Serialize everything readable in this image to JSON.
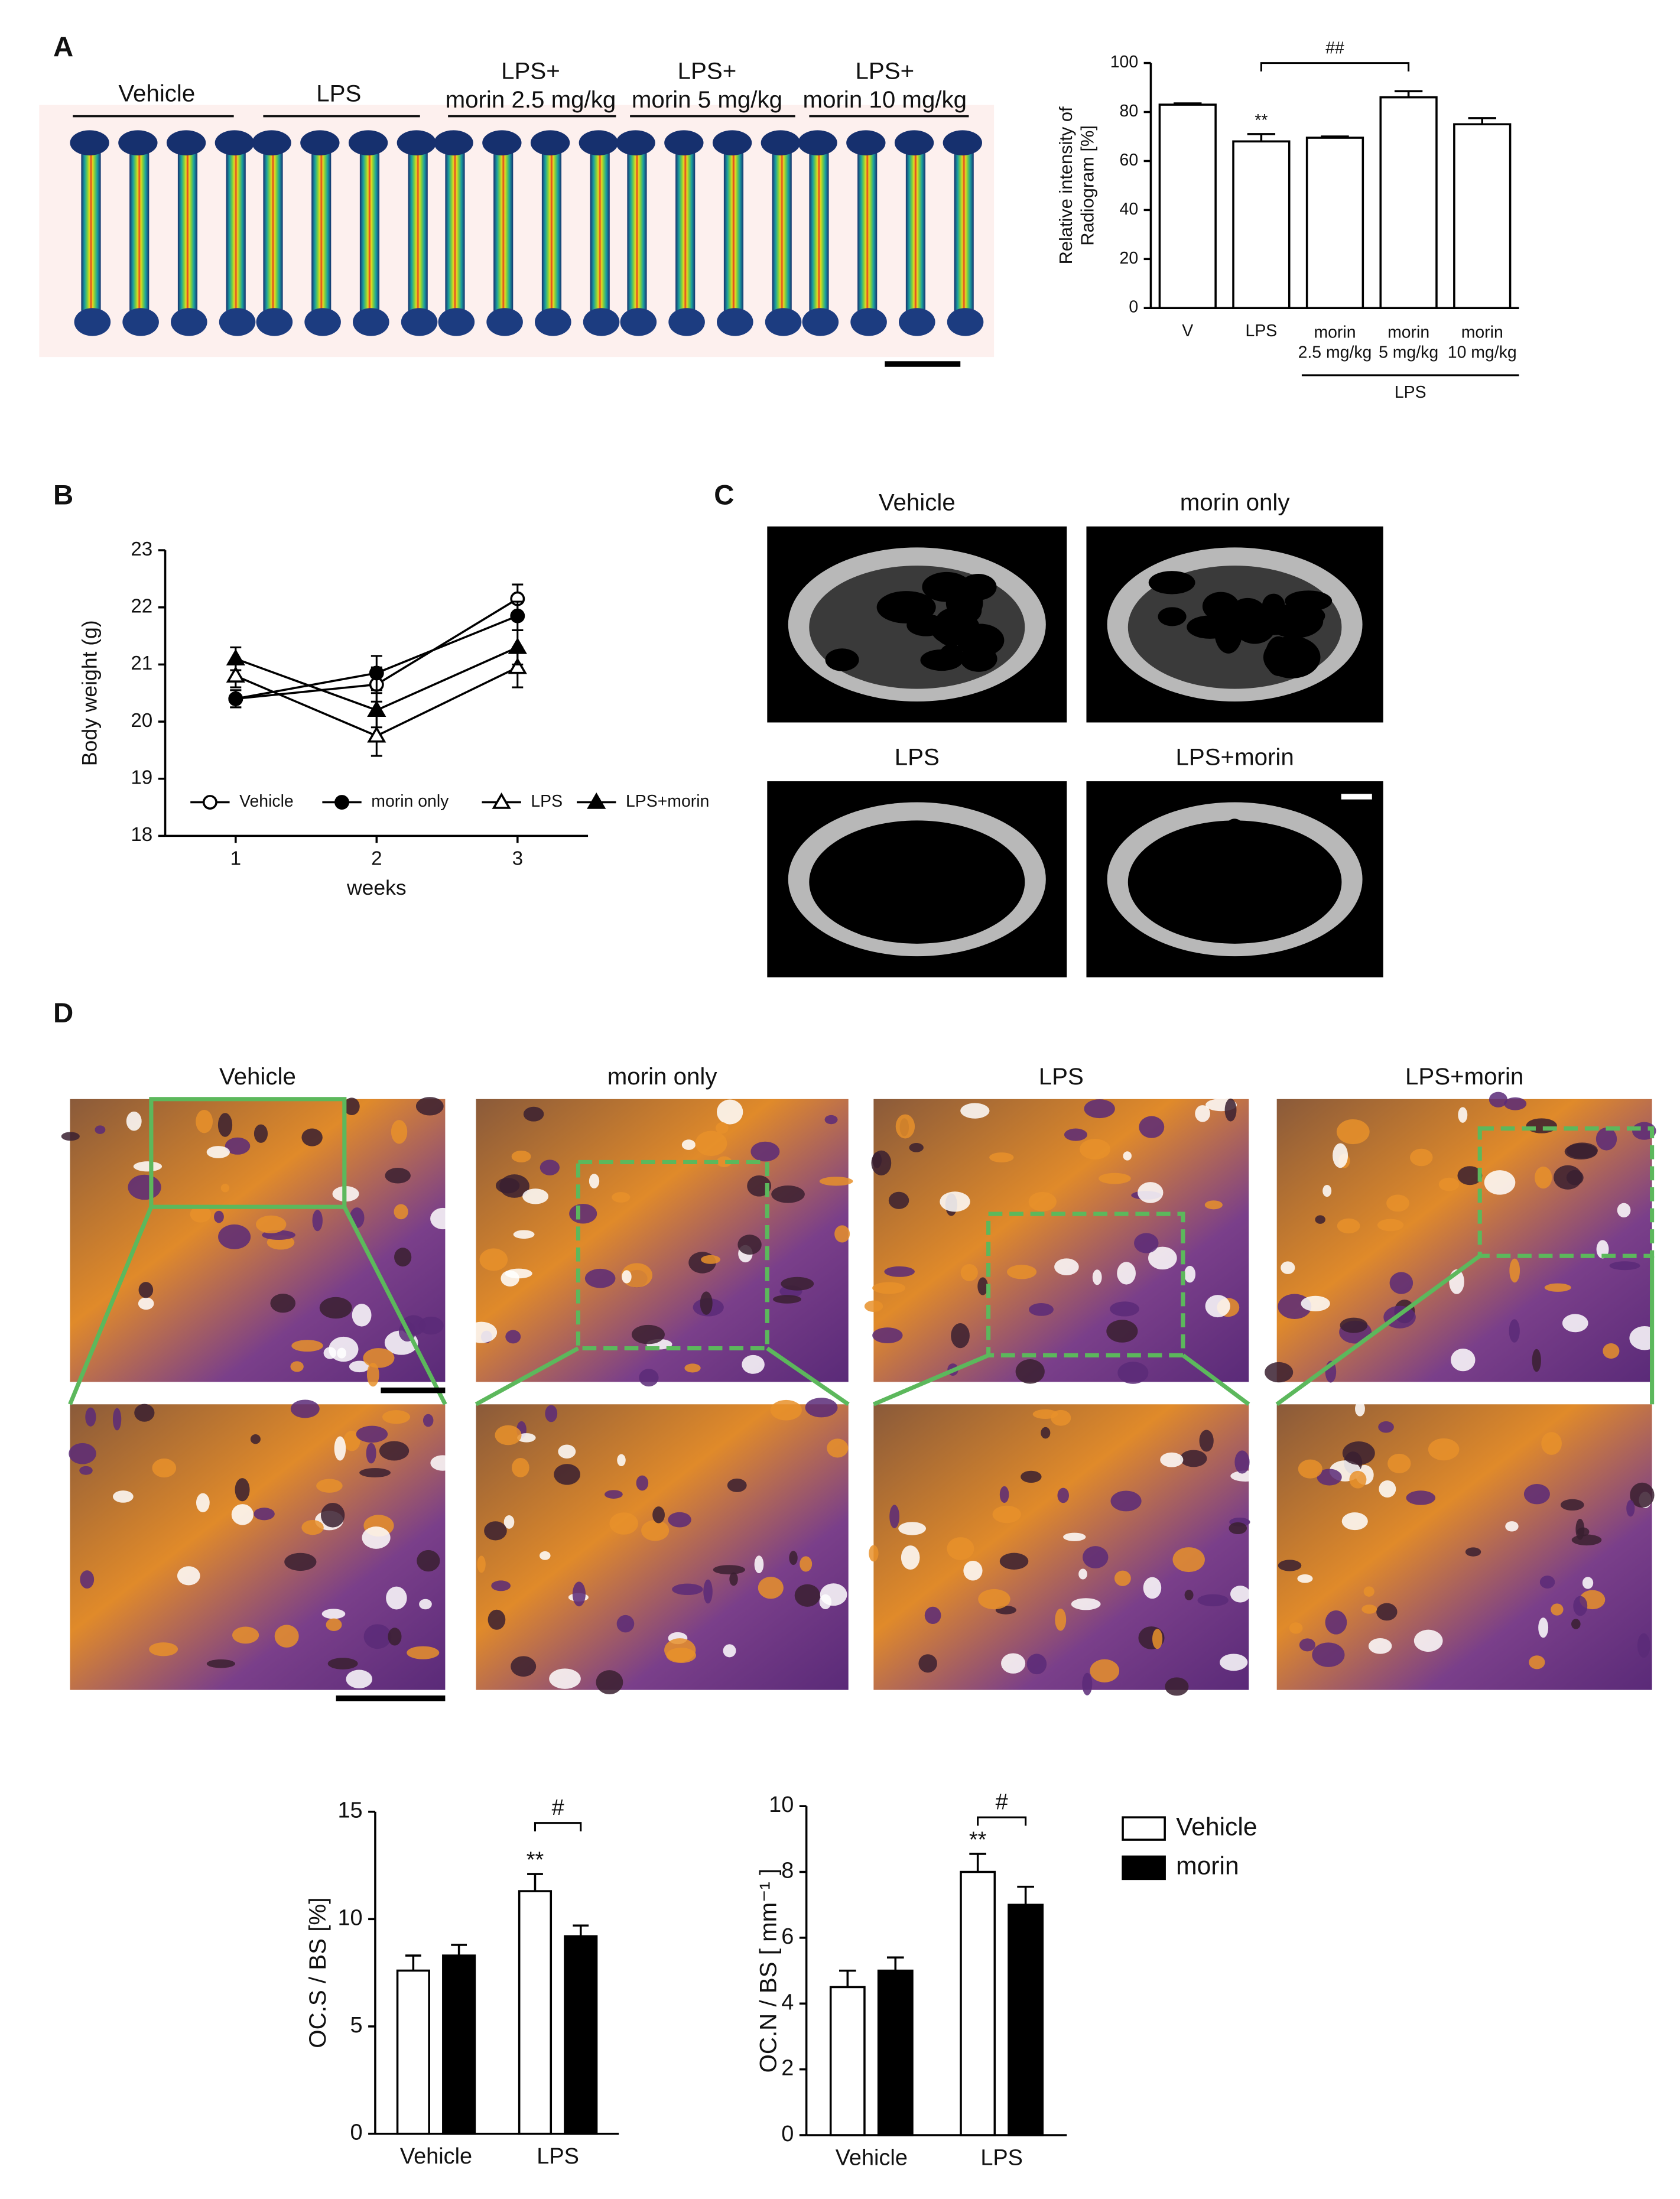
{
  "figure": {
    "panels": [
      "A",
      "B",
      "C",
      "D"
    ],
    "radiogram_labels": [
      "Vehicle",
      "LPS",
      "LPS+\nmorin 2.5 mg/kg",
      "LPS+\nmorin 5 mg/kg",
      "LPS+\nmorin 10 mg/kg"
    ],
    "microct_labels": [
      "Vehicle",
      "morin only",
      "LPS",
      "LPS+morin"
    ],
    "histology_labels": [
      "Vehicle",
      "morin only",
      "LPS",
      "LPS+morin"
    ]
  },
  "chart_data": [
    {
      "type": "bar",
      "categories": [
        "V",
        "LPS",
        "morin\n2.5 mg/kg",
        "morin\n5 mg/kg",
        "morin\n10 mg/kg"
      ],
      "values": [
        83,
        68,
        69.5,
        86,
        75
      ],
      "errors": [
        0.5,
        3,
        0.5,
        2.5,
        2.5
      ],
      "significance": [
        null,
        "**",
        null,
        null,
        null
      ],
      "bracket_label": "##",
      "group_label": "LPS",
      "ylabel": "Relative intensity of\nRadiogram [%]",
      "color": "#ffffff",
      "ylim": [
        0,
        100
      ],
      "yticks": [
        0,
        20,
        40,
        60,
        80,
        100
      ]
    },
    {
      "type": "line",
      "x": [
        1,
        2,
        3
      ],
      "xlim": [
        0.5,
        3.5
      ],
      "xticks": [
        1,
        2,
        3
      ],
      "ylim": [
        18,
        23
      ],
      "yticks": [
        18,
        19,
        20,
        21,
        22,
        23
      ],
      "xlabel": "weeks",
      "ylabel": "Body weight (g)",
      "legend": "bottom",
      "series": [
        {
          "name": "Vehicle",
          "marker": "circle",
          "color": "#ffffff",
          "values": [
            20.4,
            20.65,
            22.15
          ],
          "errors": [
            0.15,
            0.3,
            0.25
          ]
        },
        {
          "name": "morin only",
          "marker": "circle",
          "color": "#000000",
          "values": [
            20.4,
            20.85,
            21.85
          ],
          "errors": [
            0.15,
            0.3,
            0.25
          ]
        },
        {
          "name": "LPS",
          "marker": "triangle",
          "color": "#ffffff",
          "values": [
            20.8,
            19.75,
            20.95
          ],
          "errors": [
            0.2,
            0.35,
            0.35
          ]
        },
        {
          "name": "LPS+morin",
          "marker": "triangle",
          "color": "#000000",
          "values": [
            21.1,
            20.2,
            21.3
          ],
          "errors": [
            0.2,
            0.3,
            0.3
          ]
        }
      ]
    },
    {
      "type": "bar",
      "categories": [
        "Vehicle",
        "LPS"
      ],
      "ylabel": "OC.S / BS [%]",
      "series": [
        {
          "color": "#ffffff",
          "values": [
            7.6,
            11.3
          ],
          "errors": [
            0.7,
            0.8
          ]
        },
        {
          "color": "#000000",
          "values": [
            8.3,
            9.2
          ],
          "errors": [
            0.5,
            0.5
          ]
        }
      ],
      "significance": [
        null,
        "**"
      ],
      "bracket_label": "#",
      "ylim": [
        0,
        15
      ],
      "yticks": [
        0,
        5,
        10,
        15
      ]
    },
    {
      "type": "bar",
      "categories": [
        "Vehicle",
        "LPS"
      ],
      "ylabel": "OC.N / BS [ mm⁻¹ ]",
      "legend": "right",
      "series": [
        {
          "name": "Vehicle",
          "color": "#ffffff",
          "values": [
            4.5,
            8.0
          ],
          "errors": [
            0.5,
            0.55
          ]
        },
        {
          "name": "morin",
          "color": "#000000",
          "values": [
            5.0,
            7.0
          ],
          "errors": [
            0.4,
            0.55
          ]
        }
      ],
      "significance": [
        null,
        "**"
      ],
      "bracket_label": "#",
      "ylim": [
        0,
        10
      ],
      "yticks": [
        0,
        2,
        4,
        6,
        8,
        10
      ]
    }
  ]
}
